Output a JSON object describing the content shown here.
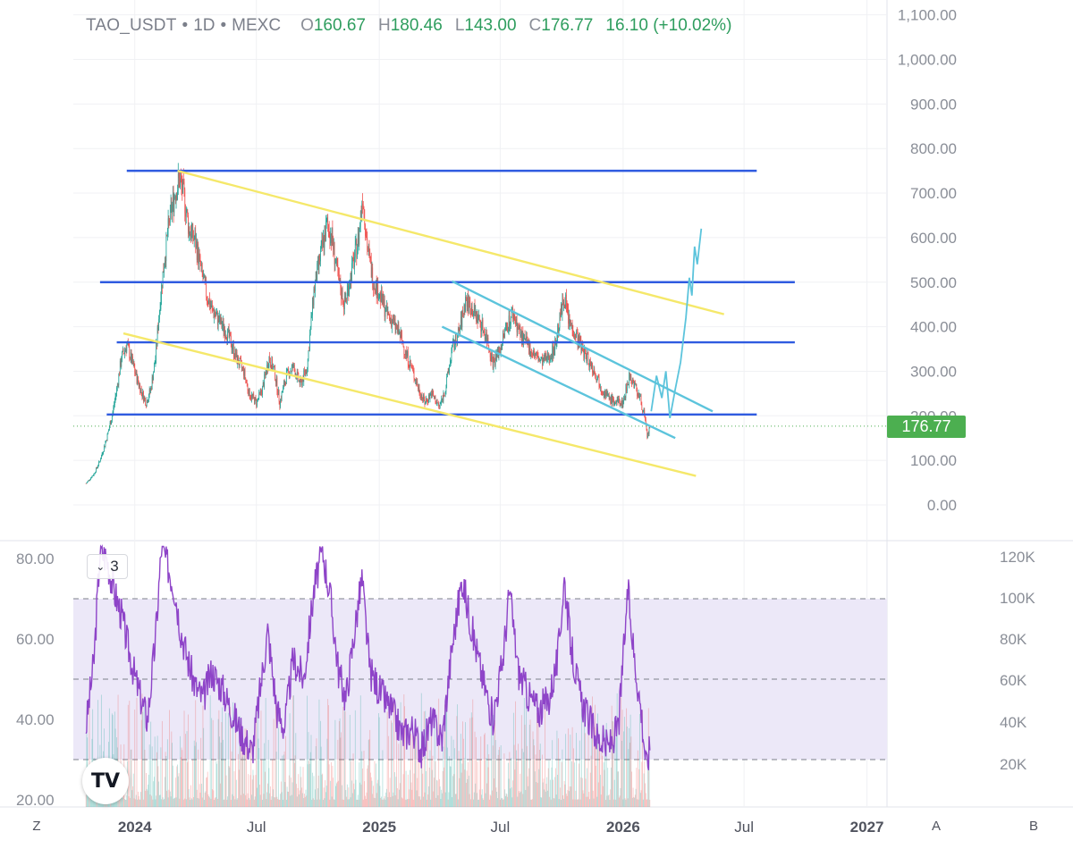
{
  "header": {
    "symbol": "TAO_USDT",
    "interval": "1D",
    "exchange": "MEXC",
    "dot": "•",
    "o_label": "O",
    "o_value": "160.67",
    "h_label": "H",
    "h_value": "180.46",
    "l_label": "L",
    "l_value": "143.00",
    "c_label": "C",
    "c_value": "176.77",
    "change": "16.10 (+10.02%)"
  },
  "last_price_label": "176.77",
  "rsi_legend": {
    "chevron": "⌄",
    "count": "3"
  },
  "logo": {
    "text": "TV",
    "icon": "tradingview-logo"
  },
  "bottom_buttons": {
    "left": "Z",
    "right_a": "A",
    "right_b": "B"
  },
  "colors": {
    "candle_up": "#26a69a",
    "candle_down": "#ef5350",
    "horizontal_levels": "#2f5be0",
    "yellow_channel": "#f5e86a",
    "teal_channel": "#5cc4dc",
    "projection": "#5cc4dc",
    "rsi_line": "#8e44c8",
    "rsi_band": "#ece8f8",
    "price_tag": "#4caf50"
  },
  "chart_data": [
    {
      "type": "line",
      "title": "TAO_USDT · 1D · MEXC",
      "xlabel": "",
      "ylabel": "",
      "x_ticks": [
        "2024",
        "Jul",
        "2025",
        "Jul",
        "2026",
        "Jul",
        "2027"
      ],
      "y_ticks": [
        "0.00",
        "100.00",
        "200.00",
        "300.00",
        "400.00",
        "500.00",
        "600.00",
        "700.00",
        "800.00",
        "900.00",
        "1,000.00",
        "1,100.00"
      ],
      "ylim": [
        -60,
        1110
      ],
      "xlim": [
        "2023-10-01",
        "2027-01-31"
      ],
      "last_price": 176.77,
      "price_series": [
        [
          "2023-10-20",
          48
        ],
        [
          "2023-11-01",
          70
        ],
        [
          "2023-11-10",
          100
        ],
        [
          "2023-11-20",
          150
        ],
        [
          "2023-11-28",
          200
        ],
        [
          "2023-12-05",
          260
        ],
        [
          "2023-12-12",
          330
        ],
        [
          "2023-12-20",
          360
        ],
        [
          "2023-12-28",
          320
        ],
        [
          "2024-01-05",
          280
        ],
        [
          "2024-01-12",
          250
        ],
        [
          "2024-01-18",
          230
        ],
        [
          "2024-01-25",
          260
        ],
        [
          "2024-02-01",
          330
        ],
        [
          "2024-02-08",
          460
        ],
        [
          "2024-02-15",
          560
        ],
        [
          "2024-02-22",
          640
        ],
        [
          "2024-03-01",
          700
        ],
        [
          "2024-03-08",
          730
        ],
        [
          "2024-03-15",
          690
        ],
        [
          "2024-03-22",
          620
        ],
        [
          "2024-04-01",
          590
        ],
        [
          "2024-04-10",
          520
        ],
        [
          "2024-04-18",
          470
        ],
        [
          "2024-04-25",
          440
        ],
        [
          "2024-05-03",
          420
        ],
        [
          "2024-05-12",
          400
        ],
        [
          "2024-05-20",
          380
        ],
        [
          "2024-06-01",
          330
        ],
        [
          "2024-06-12",
          300
        ],
        [
          "2024-06-20",
          250
        ],
        [
          "2024-07-01",
          230
        ],
        [
          "2024-07-10",
          260
        ],
        [
          "2024-07-20",
          330
        ],
        [
          "2024-07-28",
          300
        ],
        [
          "2024-08-05",
          230
        ],
        [
          "2024-08-15",
          290
        ],
        [
          "2024-08-25",
          310
        ],
        [
          "2024-09-05",
          270
        ],
        [
          "2024-09-15",
          310
        ],
        [
          "2024-09-25",
          480
        ],
        [
          "2024-10-05",
          560
        ],
        [
          "2024-10-15",
          630
        ],
        [
          "2024-10-22",
          600
        ],
        [
          "2024-11-01",
          500
        ],
        [
          "2024-11-10",
          450
        ],
        [
          "2024-11-20",
          520
        ],
        [
          "2024-12-01",
          600
        ],
        [
          "2024-12-07",
          700
        ],
        [
          "2024-12-14",
          580
        ],
        [
          "2024-12-22",
          510
        ],
        [
          "2025-01-02",
          470
        ],
        [
          "2025-01-12",
          430
        ],
        [
          "2025-01-22",
          410
        ],
        [
          "2025-02-01",
          380
        ],
        [
          "2025-02-10",
          340
        ],
        [
          "2025-02-20",
          300
        ],
        [
          "2025-03-01",
          260
        ],
        [
          "2025-03-10",
          230
        ],
        [
          "2025-03-20",
          250
        ],
        [
          "2025-04-01",
          220
        ],
        [
          "2025-04-10",
          260
        ],
        [
          "2025-04-20",
          350
        ],
        [
          "2025-05-01",
          390
        ],
        [
          "2025-05-10",
          460
        ],
        [
          "2025-05-20",
          440
        ],
        [
          "2025-06-01",
          410
        ],
        [
          "2025-06-10",
          380
        ],
        [
          "2025-06-20",
          320
        ],
        [
          "2025-07-01",
          350
        ],
        [
          "2025-07-10",
          400
        ],
        [
          "2025-07-20",
          430
        ],
        [
          "2025-08-01",
          380
        ],
        [
          "2025-08-10",
          360
        ],
        [
          "2025-08-20",
          340
        ],
        [
          "2025-09-01",
          320
        ],
        [
          "2025-09-10",
          330
        ],
        [
          "2025-09-20",
          350
        ],
        [
          "2025-10-01",
          440
        ],
        [
          "2025-10-05",
          470
        ],
        [
          "2025-10-12",
          410
        ],
        [
          "2025-10-20",
          390
        ],
        [
          "2025-11-01",
          350
        ],
        [
          "2025-11-12",
          320
        ],
        [
          "2025-11-22",
          290
        ],
        [
          "2025-12-01",
          260
        ],
        [
          "2025-12-10",
          240
        ],
        [
          "2025-12-20",
          230
        ],
        [
          "2026-01-01",
          230
        ],
        [
          "2026-01-10",
          290
        ],
        [
          "2026-01-18",
          270
        ],
        [
          "2026-01-26",
          240
        ],
        [
          "2026-02-02",
          200
        ],
        [
          "2026-02-06",
          150
        ],
        [
          "2026-02-10",
          176.77
        ]
      ],
      "horizontal_levels": [
        {
          "value": 750,
          "from": "2023-12-20",
          "to": "2026-07-20"
        },
        {
          "value": 500,
          "from": "2023-11-10",
          "to": "2026-09-15"
        },
        {
          "value": 365,
          "from": "2023-12-05",
          "to": "2026-09-15"
        },
        {
          "value": 203,
          "from": "2023-11-20",
          "to": "2026-07-20"
        }
      ],
      "trend_lines": [
        {
          "name": "yellow upper",
          "from": [
            "2024-03-05",
            750
          ],
          "to": [
            "2026-06-01",
            428
          ]
        },
        {
          "name": "yellow lower",
          "from": [
            "2023-12-15",
            385
          ],
          "to": [
            "2026-04-20",
            65
          ]
        },
        {
          "name": "teal upper",
          "from": [
            "2025-04-20",
            502
          ],
          "to": [
            "2026-05-15",
            210
          ]
        },
        {
          "name": "teal lower",
          "from": [
            "2025-04-05",
            400
          ],
          "to": [
            "2026-03-20",
            150
          ]
        }
      ],
      "projection": [
        [
          "2026-02-12",
          210
        ],
        [
          "2026-02-20",
          290
        ],
        [
          "2026-02-28",
          240
        ],
        [
          "2026-03-06",
          300
        ],
        [
          "2026-03-12",
          195
        ],
        [
          "2026-03-20",
          260
        ],
        [
          "2026-03-28",
          320
        ],
        [
          "2026-04-05",
          420
        ],
        [
          "2026-04-10",
          510
        ],
        [
          "2026-04-14",
          470
        ],
        [
          "2026-04-18",
          580
        ],
        [
          "2026-04-22",
          540
        ],
        [
          "2026-04-28",
          620
        ]
      ]
    },
    {
      "type": "line",
      "title": "RSI",
      "y_ticks": [
        "20.00",
        "40.00",
        "60.00",
        "80.00"
      ],
      "ylim": [
        20,
        83
      ],
      "band": [
        30,
        70
      ],
      "midline": 50,
      "volume_ticks": [
        "20K",
        "40K",
        "60K",
        "80K",
        "100K",
        "120K"
      ],
      "rsi_series": [
        [
          "2023-10-20",
          38
        ],
        [
          "2023-11-01",
          55
        ],
        [
          "2023-11-10",
          82
        ],
        [
          "2023-11-20",
          80
        ],
        [
          "2023-12-01",
          72
        ],
        [
          "2023-12-12",
          66
        ],
        [
          "2023-12-22",
          58
        ],
        [
          "2024-01-02",
          50
        ],
        [
          "2024-01-12",
          44
        ],
        [
          "2024-01-20",
          40
        ],
        [
          "2024-02-01",
          60
        ],
        [
          "2024-02-10",
          83
        ],
        [
          "2024-02-20",
          78
        ],
        [
          "2024-03-01",
          72
        ],
        [
          "2024-03-10",
          62
        ],
        [
          "2024-03-20",
          55
        ],
        [
          "2024-04-01",
          48
        ],
        [
          "2024-04-12",
          45
        ],
        [
          "2024-04-25",
          52
        ],
        [
          "2024-05-10",
          48
        ],
        [
          "2024-05-25",
          42
        ],
        [
          "2024-06-10",
          36
        ],
        [
          "2024-06-25",
          32
        ],
        [
          "2024-07-05",
          45
        ],
        [
          "2024-07-18",
          62
        ],
        [
          "2024-08-01",
          42
        ],
        [
          "2024-08-12",
          38
        ],
        [
          "2024-08-25",
          55
        ],
        [
          "2024-09-10",
          50
        ],
        [
          "2024-09-25",
          72
        ],
        [
          "2024-10-08",
          82
        ],
        [
          "2024-10-20",
          70
        ],
        [
          "2024-11-01",
          52
        ],
        [
          "2024-11-12",
          45
        ],
        [
          "2024-11-25",
          62
        ],
        [
          "2024-12-06",
          75
        ],
        [
          "2024-12-18",
          52
        ],
        [
          "2025-01-05",
          46
        ],
        [
          "2025-01-20",
          42
        ],
        [
          "2025-02-05",
          36
        ],
        [
          "2025-02-20",
          38
        ],
        [
          "2025-03-05",
          32
        ],
        [
          "2025-03-20",
          40
        ],
        [
          "2025-04-05",
          35
        ],
        [
          "2025-04-20",
          58
        ],
        [
          "2025-05-05",
          75
        ],
        [
          "2025-05-20",
          62
        ],
        [
          "2025-06-05",
          50
        ],
        [
          "2025-06-20",
          40
        ],
        [
          "2025-07-05",
          55
        ],
        [
          "2025-07-15",
          72
        ],
        [
          "2025-07-28",
          52
        ],
        [
          "2025-08-12",
          46
        ],
        [
          "2025-08-28",
          42
        ],
        [
          "2025-09-12",
          45
        ],
        [
          "2025-09-25",
          55
        ],
        [
          "2025-10-05",
          75
        ],
        [
          "2025-10-15",
          58
        ],
        [
          "2025-10-28",
          46
        ],
        [
          "2025-11-10",
          40
        ],
        [
          "2025-11-25",
          35
        ],
        [
          "2025-12-10",
          33
        ],
        [
          "2025-12-25",
          38
        ],
        [
          "2026-01-08",
          72
        ],
        [
          "2026-01-18",
          55
        ],
        [
          "2026-01-28",
          42
        ],
        [
          "2026-02-05",
          28
        ],
        [
          "2026-02-10",
          33
        ]
      ]
    }
  ]
}
